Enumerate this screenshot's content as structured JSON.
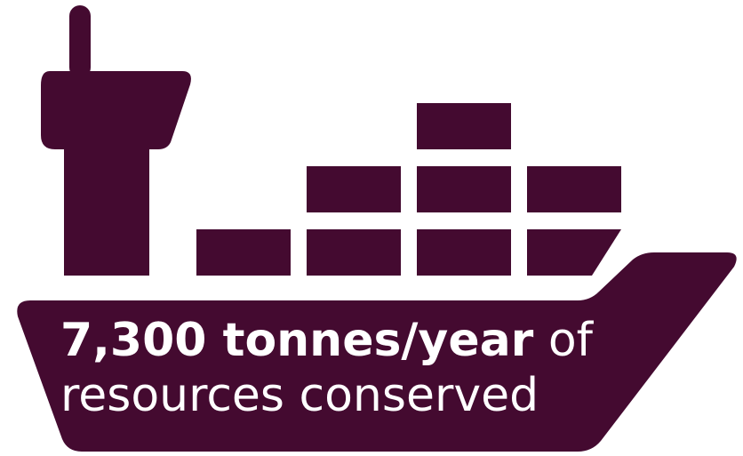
{
  "colors": {
    "ship": "#440a30",
    "background": "#ffffff",
    "text": "#ffffff"
  },
  "illustration": {
    "icon": "cargo-ship-icon"
  },
  "caption": {
    "highlight": "7,300 tonnes/year",
    "line1_rest": " of",
    "line2": "resources conserved"
  }
}
